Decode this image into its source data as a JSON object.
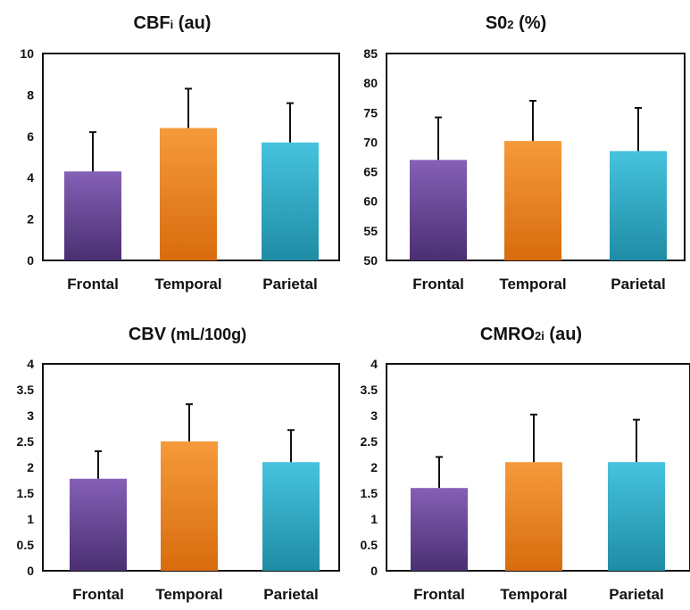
{
  "chart_data": [
    {
      "type": "bar",
      "title": "CBF",
      "title_sub": "i",
      "title_unit": " (au)",
      "categories": [
        "Frontal",
        "Temporal",
        "Parietal"
      ],
      "values": [
        4.3,
        6.4,
        5.7
      ],
      "errors": [
        1.9,
        1.9,
        1.9
      ],
      "ylim": [
        0,
        10
      ],
      "yticks": [
        0,
        2,
        4,
        6,
        8,
        10
      ],
      "ytick_labels": [
        "0",
        "2",
        "4",
        "6",
        "8",
        "10"
      ],
      "grid": false
    },
    {
      "type": "bar",
      "title": "S0",
      "title_sub": "2",
      "title_unit": " (%)",
      "categories": [
        "Frontal",
        "Temporal",
        "Parietal"
      ],
      "values": [
        67,
        70.2,
        68.5
      ],
      "errors": [
        7.2,
        6.8,
        7.3
      ],
      "ylim": [
        50,
        85
      ],
      "yticks": [
        50,
        55,
        60,
        65,
        70,
        75,
        80,
        85
      ],
      "ytick_labels": [
        "50",
        "55",
        "60",
        "65",
        "70",
        "75",
        "80",
        "85"
      ],
      "grid": false
    },
    {
      "type": "bar",
      "title": "CBV",
      "title_sub": "",
      "title_unit": " (mL/100g)",
      "categories": [
        "Frontal",
        "Temporal",
        "Parietal"
      ],
      "values": [
        1.78,
        2.5,
        2.1
      ],
      "errors": [
        0.53,
        0.72,
        0.62
      ],
      "ylim": [
        0,
        4
      ],
      "yticks": [
        0,
        0.5,
        1,
        1.5,
        2,
        2.5,
        3,
        3.5,
        4
      ],
      "ytick_labels": [
        "0",
        "0.5",
        "1",
        "1.5",
        "2",
        "2.5",
        "3",
        "3.5",
        "4"
      ],
      "grid": false
    },
    {
      "type": "bar",
      "title": "CMRO",
      "title_sub": "2i",
      "title_unit": " (au)",
      "categories": [
        "Frontal",
        "Temporal",
        "Parietal"
      ],
      "values": [
        1.6,
        2.1,
        2.1
      ],
      "errors": [
        0.6,
        0.92,
        0.82
      ],
      "ylim": [
        0,
        4
      ],
      "yticks": [
        0,
        0.5,
        1,
        1.5,
        2,
        2.5,
        3,
        3.5,
        4
      ],
      "ytick_labels": [
        "0",
        "0.5",
        "1",
        "1.5",
        "2",
        "2.5",
        "3",
        "3.5",
        "4"
      ],
      "grid": false
    }
  ],
  "colors": {
    "Frontal": [
      "#8560b6",
      "#4a2f72"
    ],
    "Temporal": [
      "#f59a3c",
      "#d86c0e"
    ],
    "Parietal": [
      "#46c3de",
      "#1f8ca5"
    ]
  }
}
